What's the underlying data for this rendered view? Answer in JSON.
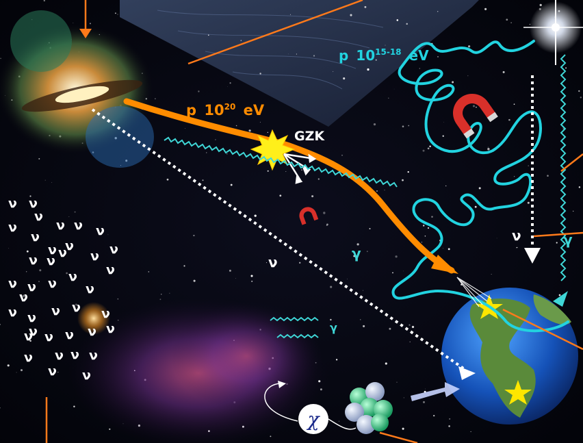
{
  "labels": {
    "proton_uhe_p": "p",
    "proton_uhe_energy": "10",
    "proton_uhe_exp": "20",
    "proton_uhe_unit": "eV",
    "proton_mid_p": "p",
    "proton_mid_energy": "10",
    "proton_mid_exp": "15-18",
    "proton_mid_unit": "eV",
    "gzk": "GZK",
    "neutrino": "ν",
    "gamma": "γ",
    "dark_matter": "χ"
  },
  "colors": {
    "uhe_proton_track": "#ff8c00",
    "cr_track": "#22d3e0",
    "photon": "#3fd7d7",
    "neutrino_track": "#ffffff",
    "pointer": "#ff7a1a",
    "star_marker": "#ffe600",
    "background": "#05060d"
  },
  "icons": [
    "galaxy-agn",
    "bright-star",
    "magnet-icon",
    "earth-globe",
    "atomic-nucleus",
    "explosion-burst",
    "dark-matter-circle"
  ]
}
